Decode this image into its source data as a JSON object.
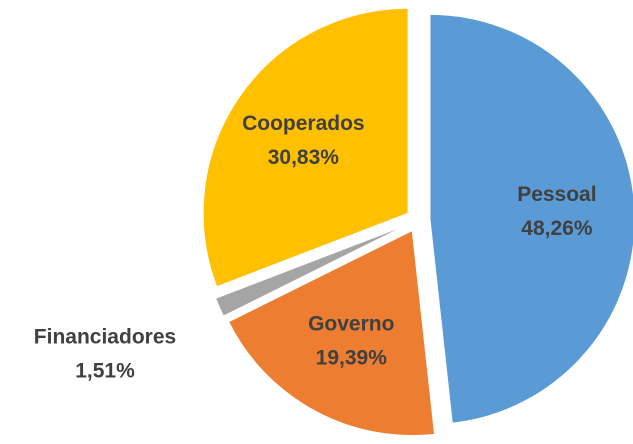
{
  "chart_data": {
    "type": "pie",
    "categories": [
      "Pessoal",
      "Governo",
      "Financiadores",
      "Cooperados"
    ],
    "values": [
      48.26,
      19.39,
      1.51,
      30.83
    ],
    "value_labels": [
      "48,26%",
      "19,39%",
      "1,51%",
      "30,83%"
    ],
    "colors": [
      "#5b9bd5",
      "#ed7d31",
      "#a5a5a5",
      "#ffc000"
    ]
  }
}
